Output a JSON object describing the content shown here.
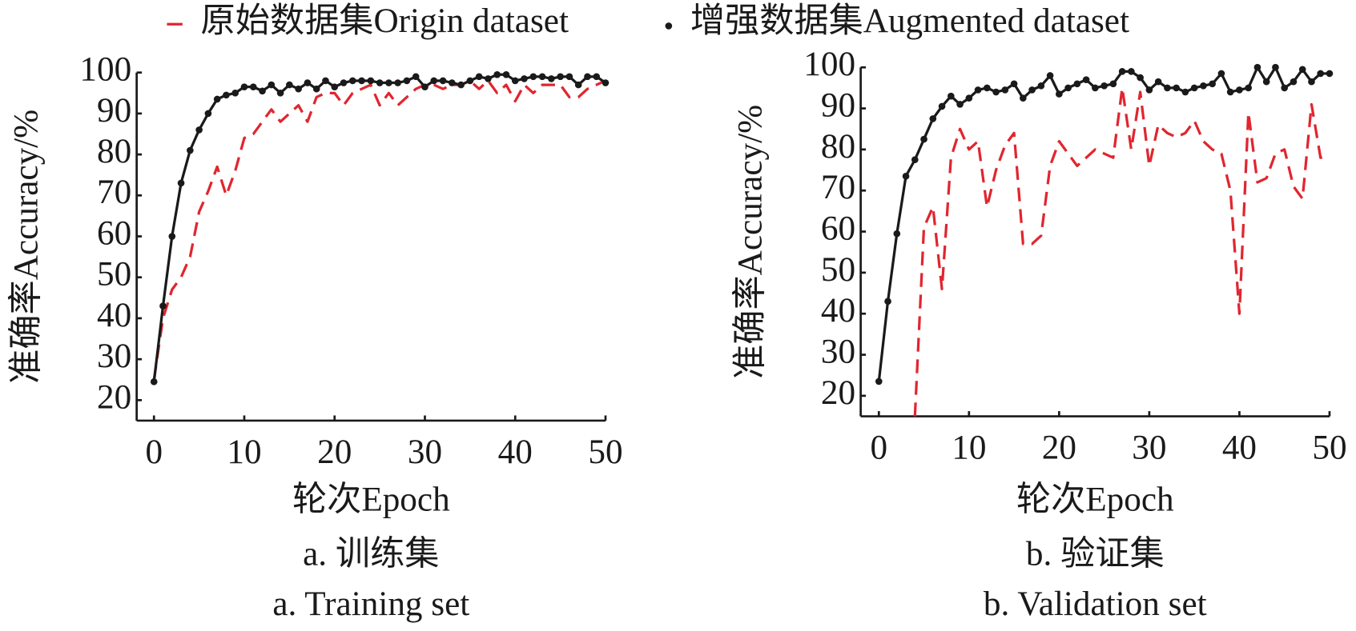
{
  "chart_data": [
    {
      "type": "line",
      "title": "a. 训练集",
      "subtitle": "a. Training set",
      "xlabel": "轮次Epoch",
      "ylabel": "准确率Accuracy/%",
      "x": [
        0,
        1,
        2,
        3,
        4,
        5,
        6,
        7,
        8,
        9,
        10,
        11,
        12,
        13,
        14,
        15,
        16,
        17,
        18,
        19,
        20,
        21,
        22,
        23,
        24,
        25,
        26,
        27,
        28,
        29,
        30,
        31,
        32,
        33,
        34,
        35,
        36,
        37,
        38,
        39,
        40,
        41,
        42,
        43,
        44,
        45,
        46,
        47,
        48,
        49,
        50
      ],
      "xlim": [
        0,
        50
      ],
      "xticks": [
        0,
        10,
        20,
        30,
        40,
        50
      ],
      "ylim": [
        15,
        100
      ],
      "yticks": [
        20,
        30,
        40,
        50,
        60,
        70,
        80,
        90,
        100
      ],
      "series": [
        {
          "name": "原始数据集Origin dataset",
          "color": "#e0262f",
          "style": "dashed",
          "values": [
            25,
            40,
            47,
            50,
            55,
            66,
            71,
            77,
            70,
            76,
            84,
            85,
            88,
            91,
            88,
            90,
            92,
            88,
            94,
            95,
            95,
            92,
            95,
            96,
            97,
            92,
            95,
            92,
            94,
            96,
            97,
            97,
            96,
            97,
            97,
            98,
            96,
            98,
            95,
            97,
            93,
            97,
            95,
            97,
            97,
            97,
            94,
            94,
            96,
            97,
            98
          ]
        },
        {
          "name": "增强数据集Augmented dataset",
          "color": "#1a1a1a",
          "style": "solid-markers",
          "values": [
            24.5,
            43,
            60,
            73,
            81,
            86,
            90,
            93.5,
            94.5,
            95,
            96.5,
            96.5,
            95.5,
            97,
            95,
            97,
            96,
            97.5,
            96,
            98,
            96.5,
            97.5,
            98,
            98,
            98,
            97.5,
            97.5,
            97.5,
            98,
            99,
            96.5,
            98,
            98,
            97.5,
            97,
            98,
            99,
            98.5,
            99.5,
            99.5,
            98,
            98.5,
            99,
            99,
            98.5,
            99,
            99,
            97,
            99,
            99,
            97.5
          ]
        }
      ]
    },
    {
      "type": "line",
      "title": "b. 验证集",
      "subtitle": "b. Validation set",
      "xlabel": "轮次Epoch",
      "ylabel": "准确率Accuracy/%",
      "x": [
        0,
        1,
        2,
        3,
        4,
        5,
        6,
        7,
        8,
        9,
        10,
        11,
        12,
        13,
        14,
        15,
        16,
        17,
        18,
        19,
        20,
        21,
        22,
        23,
        24,
        25,
        26,
        27,
        28,
        29,
        30,
        31,
        32,
        33,
        34,
        35,
        36,
        37,
        38,
        39,
        40,
        41,
        42,
        43,
        44,
        45,
        46,
        47,
        48,
        49,
        50
      ],
      "xlim": [
        0,
        50
      ],
      "xticks": [
        0,
        10,
        20,
        30,
        40,
        50
      ],
      "ylim": [
        15,
        100
      ],
      "yticks": [
        20,
        30,
        40,
        50,
        60,
        70,
        80,
        90,
        100
      ],
      "series": [
        {
          "name": "原始数据集Origin dataset",
          "color": "#e0262f",
          "style": "dashed",
          "values": [
            null,
            null,
            null,
            null,
            15,
            61,
            66,
            46,
            78,
            85,
            80,
            82,
            66,
            75,
            81,
            84,
            57,
            57,
            59,
            76,
            82,
            79,
            76,
            78,
            80,
            79,
            78,
            95,
            80,
            94,
            76,
            86,
            84,
            83,
            84,
            87,
            82,
            80,
            79,
            70,
            40,
            89,
            72,
            73,
            79,
            80,
            71,
            68,
            91,
            78,
            78
          ]
        },
        {
          "name": "增强数据集Augmented dataset",
          "color": "#1a1a1a",
          "style": "solid-markers",
          "values": [
            23.5,
            43,
            59.5,
            73.5,
            77.5,
            82.5,
            87.5,
            90.5,
            93,
            91,
            92.5,
            94.5,
            95,
            94,
            94.5,
            96,
            92.5,
            94.5,
            95.5,
            98,
            93.5,
            95,
            96,
            97,
            95,
            95.5,
            96,
            99,
            99,
            97.5,
            94.5,
            96.5,
            95,
            95,
            94,
            95,
            95.5,
            96,
            98.5,
            94,
            94.5,
            95,
            100,
            96.5,
            100,
            95,
            96.5,
            99.5,
            96.5,
            98.5,
            98.5
          ]
        }
      ]
    }
  ]
}
